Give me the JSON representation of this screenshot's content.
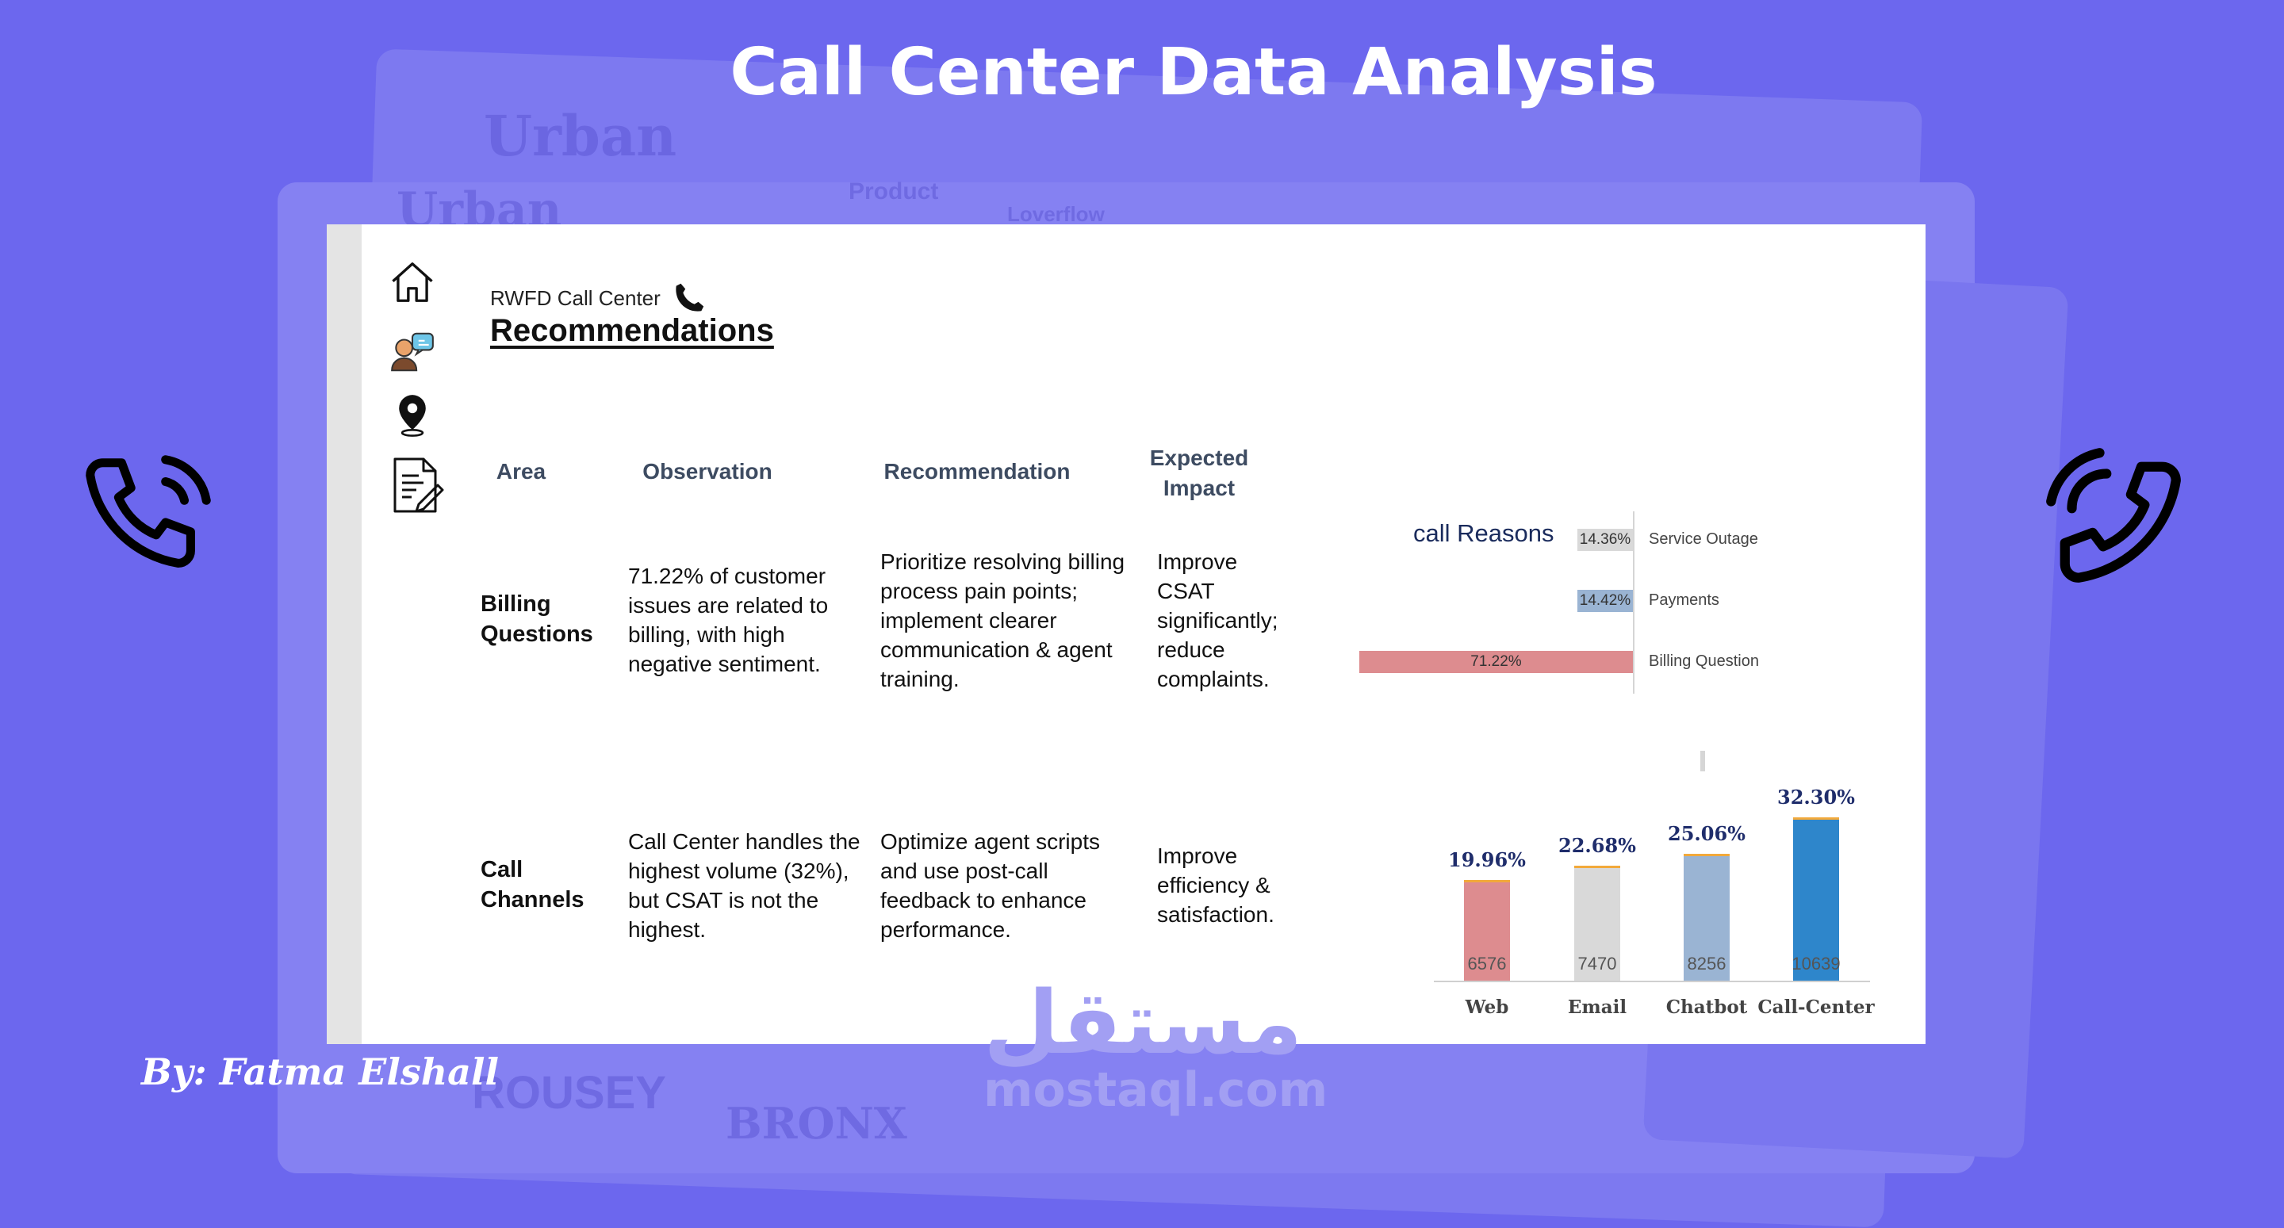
{
  "page": {
    "title": "Call Center Data Analysis",
    "author": "By: Fatma Elshall",
    "watermark": {
      "arabic": "مستقل",
      "latin": "mostaql.com"
    },
    "background_color": "#6c67ee"
  },
  "background_ghost_text": [
    "Urban",
    "Urban",
    "Product",
    "Loverflow",
    "ROUSEY",
    "BRONX"
  ],
  "dashboard": {
    "app_label": "RWFD Call Center",
    "page_title": "Recommendations",
    "nav_icons": [
      "home-icon",
      "agent-feedback-icon",
      "location-pin-icon",
      "notes-edit-icon"
    ],
    "table": {
      "headers": [
        "Area",
        "Observation",
        "Recommendation",
        "Expected Impact"
      ],
      "rows": [
        {
          "area": "Billing Questions",
          "observation": "71.22% of customer issues are related to billing, with high negative sentiment.",
          "recommendation": "Prioritize resolving billing process pain points; implement clearer communication & agent training.",
          "impact": "Improve CSAT significantly; reduce complaints."
        },
        {
          "area": "Call Channels",
          "observation": "Call Center handles the highest volume (32%), but CSAT is not the highest.",
          "recommendation": "Optimize agent scripts and use post-call feedback to enhance performance.",
          "impact": "Improve efficiency & satisfaction."
        }
      ]
    }
  },
  "chart_data": [
    {
      "type": "bar",
      "orientation": "horizontal",
      "title": "call Reasons",
      "categories": [
        "Service Outage",
        "Payments",
        "Billing Question"
      ],
      "values": [
        14.36,
        14.42,
        71.22
      ],
      "labels": [
        "14.36%",
        "14.42%",
        "71.22%"
      ],
      "colors": [
        "#d9d9d9",
        "#9ab4d3",
        "#dd8c8f"
      ],
      "grid": false
    },
    {
      "type": "bar",
      "categories": [
        "Web",
        "Email",
        "Chatbot",
        "Call-Center"
      ],
      "values": [
        6576,
        7470,
        8256,
        10639
      ],
      "percent_labels": [
        "19.96%",
        "22.68%",
        "25.06%",
        "32.30%"
      ],
      "colors": [
        "#dd8c8f",
        "#d9d9d9",
        "#9ab4d3",
        "#2e86cb"
      ],
      "ylim": [
        0,
        10639
      ],
      "grid": false
    }
  ]
}
